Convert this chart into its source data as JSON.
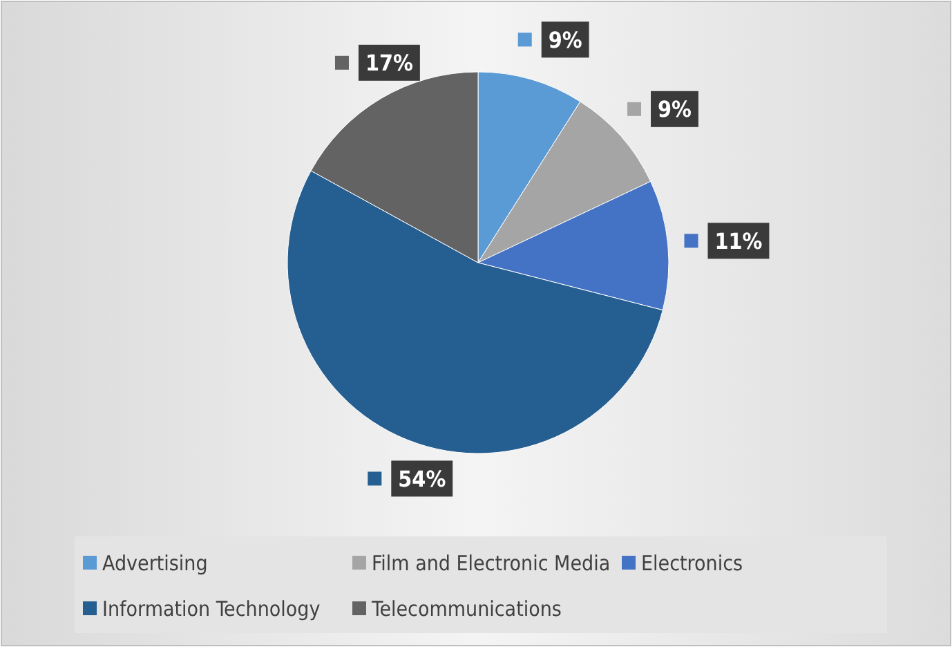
{
  "chart_data": {
    "type": "pie",
    "categories": [
      "Advertising",
      "Film and Electronic Media",
      "Electronics",
      "Information Technology",
      "Telecommunications"
    ],
    "values": [
      9,
      9,
      11,
      54,
      17
    ],
    "colors": [
      "#5b9bd5",
      "#a5a5a5",
      "#4472c4",
      "#255e91",
      "#636363"
    ],
    "value_labels": [
      "9%",
      "9%",
      "11%",
      "54%",
      "17%"
    ],
    "legend": "bottom"
  }
}
